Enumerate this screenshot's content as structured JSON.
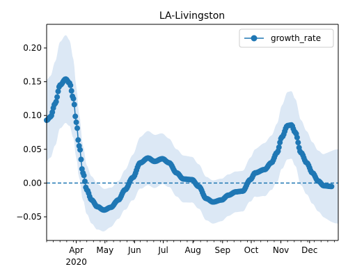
{
  "chart_data": {
    "type": "line",
    "title": "LA-Livingston",
    "xlabel": "",
    "ylabel": "",
    "year_label": "2020",
    "x_domain": [
      "2020-03-01",
      "2020-12-31"
    ],
    "ylim": [
      -0.085,
      0.235
    ],
    "y_ticks": [
      -0.05,
      0.0,
      0.05,
      0.1,
      0.15,
      0.2
    ],
    "y_tick_labels": [
      "−0.05",
      "0.00",
      "0.05",
      "0.10",
      "0.15",
      "0.20"
    ],
    "month_ticks": [
      {
        "date": "2020-04-01",
        "label": "Apr"
      },
      {
        "date": "2020-05-01",
        "label": "May"
      },
      {
        "date": "2020-06-01",
        "label": "Jun"
      },
      {
        "date": "2020-07-01",
        "label": "Jul"
      },
      {
        "date": "2020-08-01",
        "label": "Aug"
      },
      {
        "date": "2020-09-01",
        "label": "Sep"
      },
      {
        "date": "2020-10-01",
        "label": "Oct"
      },
      {
        "date": "2020-11-01",
        "label": "Nov"
      },
      {
        "date": "2020-12-01",
        "label": "Dec"
      }
    ],
    "grid": false,
    "legend": {
      "position": "top-right",
      "entries": [
        "growth_rate"
      ]
    },
    "reference_line": {
      "y": 0,
      "style": "dashed"
    },
    "colors": {
      "series": "#1f77b4",
      "band": "#dce8f5"
    },
    "series": [
      {
        "name": "growth_rate",
        "anchors": [
          [
            "2020-03-01",
            0.093
          ],
          [
            "2020-03-05",
            0.098
          ],
          [
            "2020-03-10",
            0.118
          ],
          [
            "2020-03-15",
            0.145
          ],
          [
            "2020-03-21",
            0.154
          ],
          [
            "2020-03-25",
            0.148
          ],
          [
            "2020-03-29",
            0.125
          ],
          [
            "2020-04-01",
            0.09
          ],
          [
            "2020-04-04",
            0.055
          ],
          [
            "2020-04-08",
            0.015
          ],
          [
            "2020-04-12",
            -0.01
          ],
          [
            "2020-04-17",
            -0.025
          ],
          [
            "2020-04-23",
            -0.035
          ],
          [
            "2020-04-30",
            -0.04
          ],
          [
            "2020-05-07",
            -0.036
          ],
          [
            "2020-05-15",
            -0.025
          ],
          [
            "2020-05-22",
            -0.01
          ],
          [
            "2020-05-30",
            0.008
          ],
          [
            "2020-06-07",
            0.03
          ],
          [
            "2020-06-15",
            0.037
          ],
          [
            "2020-06-22",
            0.032
          ],
          [
            "2020-06-30",
            0.036
          ],
          [
            "2020-07-07",
            0.03
          ],
          [
            "2020-07-15",
            0.015
          ],
          [
            "2020-07-22",
            0.006
          ],
          [
            "2020-07-31",
            0.005
          ],
          [
            "2020-08-07",
            -0.005
          ],
          [
            "2020-08-15",
            -0.023
          ],
          [
            "2020-08-22",
            -0.028
          ],
          [
            "2020-08-31",
            -0.025
          ],
          [
            "2020-09-07",
            -0.018
          ],
          [
            "2020-09-15",
            -0.013
          ],
          [
            "2020-09-22",
            -0.012
          ],
          [
            "2020-09-30",
            0.005
          ],
          [
            "2020-10-05",
            0.015
          ],
          [
            "2020-10-15",
            0.02
          ],
          [
            "2020-10-22",
            0.03
          ],
          [
            "2020-10-28",
            0.045
          ],
          [
            "2020-11-02",
            0.068
          ],
          [
            "2020-11-08",
            0.085
          ],
          [
            "2020-11-12",
            0.086
          ],
          [
            "2020-11-16",
            0.075
          ],
          [
            "2020-11-22",
            0.045
          ],
          [
            "2020-11-28",
            0.03
          ],
          [
            "2020-12-04",
            0.015
          ],
          [
            "2020-12-10",
            0.003
          ],
          [
            "2020-12-16",
            -0.004
          ],
          [
            "2020-12-24",
            -0.005
          ]
        ],
        "band_halfwidth": [
          [
            "2020-03-01",
            0.06
          ],
          [
            "2020-03-21",
            0.065
          ],
          [
            "2020-04-15",
            0.035
          ],
          [
            "2020-05-15",
            0.028
          ],
          [
            "2020-06-15",
            0.04
          ],
          [
            "2020-07-15",
            0.035
          ],
          [
            "2020-08-20",
            0.032
          ],
          [
            "2020-09-20",
            0.03
          ],
          [
            "2020-10-20",
            0.04
          ],
          [
            "2020-11-10",
            0.05
          ],
          [
            "2020-12-10",
            0.045
          ],
          [
            "2020-12-31",
            0.055
          ]
        ]
      }
    ]
  }
}
